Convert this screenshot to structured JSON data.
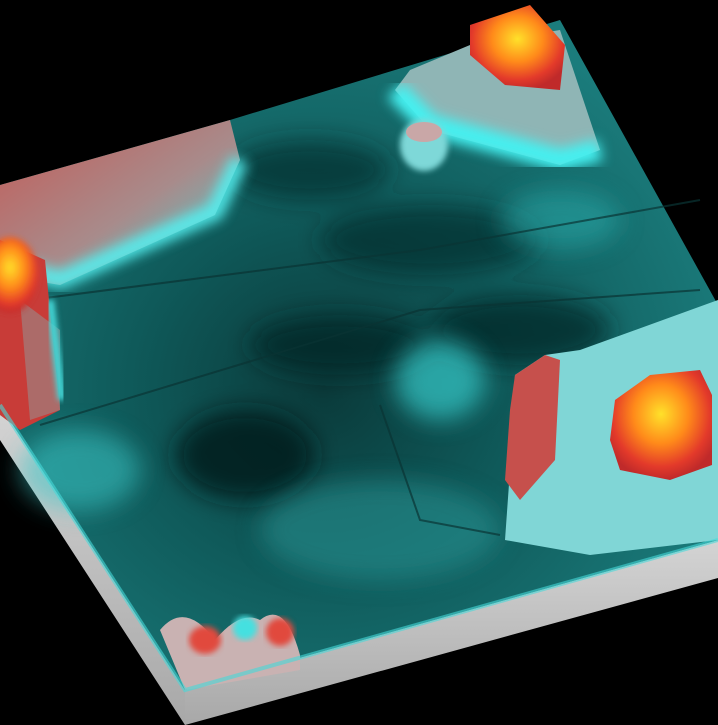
{
  "scene": {
    "description_type": "3d-surface-topography-render",
    "background_color": "#000000",
    "base_slab_color": "#c8c8c8",
    "colors": {
      "valley_dark": "#062a2a",
      "valley_mid": "#0f5a5a",
      "valley_light": "#2aa0a0",
      "ridge_cyan": "#45e8e8",
      "slope_red": "#d8403a",
      "slope_gray": "#9a8f8f",
      "peak_orange": "#ff7a1a",
      "peak_yellow": "#ffd21a"
    }
  }
}
